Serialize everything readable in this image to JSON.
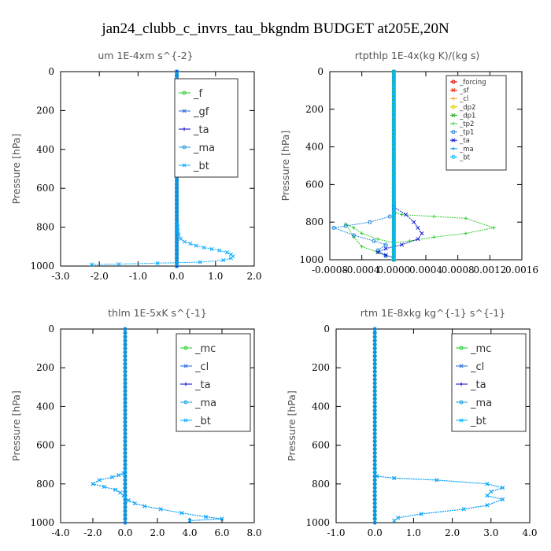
{
  "figure_title": "jan24_clubb_c_invrs_tau_bkgndm  BUDGET at205E,20N",
  "chart_data": [
    {
      "type": "line",
      "title": "um  1E-4xm s^{-2}",
      "ylabel": "Pressure [hPa]",
      "xlim": [
        -3.0,
        2.0
      ],
      "ylim": [
        1000,
        0
      ],
      "x_ticks": [
        "-3.0",
        "-2.0",
        "-1.0",
        "0.0",
        "1.0",
        "2.0"
      ],
      "x_tick_values": [
        -3,
        -2,
        -1,
        0,
        1,
        2
      ],
      "y_ticks": [
        "0",
        "200",
        "400",
        "600",
        "800",
        "1000"
      ],
      "y_tick_values": [
        0,
        200,
        400,
        600,
        800,
        1000
      ],
      "legend_position": "top-right",
      "legend_style": "large",
      "series": [
        {
          "name": "_f",
          "color": "#22cc22",
          "x": [
            0,
            0
          ],
          "y": [
            0,
            1000
          ]
        },
        {
          "name": "_gf",
          "color": "#2266dd",
          "x": [
            0,
            0
          ],
          "y": [
            0,
            1000
          ]
        },
        {
          "name": "_ta",
          "color": "#0000cc",
          "x": [
            0,
            0
          ],
          "y": [
            0,
            1000
          ]
        },
        {
          "name": "_ma",
          "color": "#1199dd",
          "x": [
            0,
            0
          ],
          "y": [
            0,
            1000
          ]
        },
        {
          "name": "_bt",
          "color": "#00aaff",
          "x": [
            0.01,
            0.02,
            0.03,
            0.05,
            0.1,
            0.2,
            0.35,
            0.5,
            0.7,
            0.9,
            1.1,
            1.3,
            1.4,
            1.45,
            1.4,
            1.2,
            0.6,
            -0.5,
            -1.5,
            -2.2
          ],
          "y": [
            780,
            800,
            820,
            840,
            860,
            875,
            885,
            895,
            905,
            912,
            920,
            930,
            940,
            950,
            960,
            970,
            980,
            985,
            990,
            992
          ]
        }
      ]
    },
    {
      "type": "line",
      "title": "rtpthlp  1E-4x(kg K)/(kg s)",
      "ylabel": "Pressure [hPa]",
      "xlim": [
        -0.0008,
        0.0016
      ],
      "ylim": [
        1000,
        0
      ],
      "x_ticks": [
        "-0.0008",
        "-0.0004",
        "0.0000",
        "0.0004",
        "0.0008",
        "0.0012",
        "0.0016"
      ],
      "x_tick_values": [
        -0.0008,
        -0.0004,
        0.0,
        0.0004,
        0.0008,
        0.0012,
        0.0016
      ],
      "y_ticks": [
        "0",
        "200",
        "400",
        "600",
        "800",
        "1000"
      ],
      "y_tick_values": [
        0,
        200,
        400,
        600,
        800,
        1000
      ],
      "legend_position": "top-right",
      "legend_style": "small",
      "series": [
        {
          "name": "_forcing",
          "color": "#dd0000",
          "x": [
            0,
            0
          ],
          "y": [
            0,
            1000
          ]
        },
        {
          "name": "_sf",
          "color": "#ee2200",
          "x": [
            0,
            0
          ],
          "y": [
            0,
            1000
          ]
        },
        {
          "name": "_cl",
          "color": "#ff9900",
          "x": [
            0,
            0
          ],
          "y": [
            0,
            1000
          ]
        },
        {
          "name": "_dp2",
          "color": "#ddcc00",
          "x": [
            0,
            0
          ],
          "y": [
            0,
            1000
          ]
        },
        {
          "name": "_dp1",
          "color": "#22aa22",
          "x": [
            0,
            0
          ],
          "y": [
            0,
            1000
          ]
        },
        {
          "name": "_tp2",
          "color": "#33cc33",
          "x": [
            2e-05,
            0.0001,
            0.0005,
            0.0009,
            0.00125,
            0.0009,
            0.0005,
            0.0002,
            0.0,
            -0.0002,
            -0.0004,
            -0.0005,
            -0.0006,
            -0.0005,
            -0.0004,
            -0.0002,
            -0.0001
          ],
          "y": [
            750,
            760,
            770,
            780,
            830,
            860,
            880,
            900,
            910,
            890,
            860,
            830,
            810,
            880,
            930,
            960,
            980
          ]
        },
        {
          "name": "_tp1",
          "color": "#2288dd",
          "x": [
            -5e-05,
            -0.0003,
            -0.0006,
            -0.00075,
            -0.0005,
            -0.00025,
            -0.0001,
            -0.0002,
            -0.0001
          ],
          "y": [
            770,
            800,
            820,
            830,
            870,
            900,
            920,
            950,
            980
          ]
        },
        {
          "name": "_ta",
          "color": "#1122cc",
          "x": [
            0.0,
            0.00015,
            0.00025,
            0.0003,
            0.00035,
            0.0003,
            0.0001,
            -0.0001,
            -0.0002,
            -0.0001,
            0.0
          ],
          "y": [
            720,
            760,
            800,
            830,
            860,
            890,
            920,
            940,
            960,
            975,
            990
          ]
        },
        {
          "name": "_ma",
          "color": "#1199dd",
          "x": [
            0,
            0
          ],
          "y": [
            0,
            1000
          ]
        },
        {
          "name": "_bt",
          "color": "#00bbff",
          "x": [
            0,
            0
          ],
          "y": [
            0,
            1000
          ]
        }
      ]
    },
    {
      "type": "line",
      "title": "thlm  1E-5xK s^{-1}",
      "ylabel": "Pressure [hPa]",
      "xlim": [
        -4.0,
        8.0
      ],
      "ylim": [
        1000,
        0
      ],
      "x_ticks": [
        "-4.0",
        "-2.0",
        "0.0",
        "2.0",
        "4.0",
        "6.0",
        "8.0"
      ],
      "x_tick_values": [
        -4,
        -2,
        0,
        2,
        4,
        6,
        8
      ],
      "y_ticks": [
        "0",
        "200",
        "400",
        "600",
        "800",
        "1000"
      ],
      "y_tick_values": [
        0,
        200,
        400,
        600,
        800,
        1000
      ],
      "legend_position": "top-right",
      "legend_style": "large",
      "series": [
        {
          "name": "_mc",
          "color": "#22cc22",
          "x": [
            0,
            0
          ],
          "y": [
            0,
            1000
          ]
        },
        {
          "name": "_cl",
          "color": "#2266dd",
          "x": [
            0.0,
            -0.1,
            -0.4,
            -0.8,
            -1.6,
            -2.0,
            -1.3,
            -0.6,
            -0.3,
            -0.1,
            0.0,
            0.2,
            0.6,
            1.2,
            2.2,
            3.5,
            5.0,
            6.0,
            4.0
          ],
          "y": [
            730,
            745,
            755,
            765,
            780,
            800,
            815,
            830,
            845,
            860,
            870,
            885,
            900,
            915,
            930,
            950,
            970,
            980,
            990
          ]
        },
        {
          "name": "_ta",
          "color": "#0000cc",
          "x": [
            0,
            0
          ],
          "y": [
            0,
            1000
          ]
        },
        {
          "name": "_ma",
          "color": "#1199dd",
          "x": [
            0,
            0
          ],
          "y": [
            0,
            1000
          ]
        },
        {
          "name": "_bt",
          "color": "#00aaff",
          "x": [
            0.0,
            -0.1,
            -0.4,
            -0.8,
            -1.6,
            -2.0,
            -1.3,
            -0.6,
            -0.3,
            -0.1,
            0.0,
            0.2,
            0.6,
            1.2,
            2.2,
            3.5,
            5.0,
            6.0,
            4.0
          ],
          "y": [
            730,
            745,
            755,
            765,
            780,
            800,
            815,
            830,
            845,
            860,
            870,
            885,
            900,
            915,
            930,
            950,
            970,
            980,
            990
          ]
        }
      ]
    },
    {
      "type": "line",
      "title": "rtm  1E-8xkg kg^{-1} s^{-1}",
      "ylabel": "Pressure [hPa]",
      "xlim": [
        -1.0,
        4.0
      ],
      "ylim": [
        1000,
        0
      ],
      "x_ticks": [
        "-1.0",
        "0.0",
        "1.0",
        "2.0",
        "3.0",
        "4.0"
      ],
      "x_tick_values": [
        -1,
        0,
        1,
        2,
        3,
        4
      ],
      "y_ticks": [
        "0",
        "200",
        "400",
        "600",
        "800",
        "1000"
      ],
      "y_tick_values": [
        0,
        200,
        400,
        600,
        800,
        1000
      ],
      "legend_position": "top-right",
      "legend_style": "large",
      "series": [
        {
          "name": "_mc",
          "color": "#22cc22",
          "x": [
            0,
            0
          ],
          "y": [
            0,
            1000
          ]
        },
        {
          "name": "_cl",
          "color": "#2266dd",
          "x": [
            0.0,
            0.05,
            0.5,
            1.6,
            2.9,
            3.3,
            3.0,
            2.9,
            3.3,
            2.9,
            2.3,
            1.2,
            0.6,
            0.5
          ],
          "y": [
            730,
            760,
            770,
            780,
            800,
            820,
            840,
            860,
            880,
            910,
            930,
            955,
            975,
            990
          ]
        },
        {
          "name": "_ta",
          "color": "#0000cc",
          "x": [
            0,
            0
          ],
          "y": [
            0,
            1000
          ]
        },
        {
          "name": "_ma",
          "color": "#1199dd",
          "x": [
            0,
            0
          ],
          "y": [
            0,
            1000
          ]
        },
        {
          "name": "_bt",
          "color": "#00aaff",
          "x": [
            0.0,
            0.05,
            0.5,
            1.6,
            2.9,
            3.3,
            3.0,
            2.9,
            3.3,
            2.9,
            2.3,
            1.2,
            0.6,
            0.5
          ],
          "y": [
            730,
            760,
            770,
            780,
            800,
            820,
            840,
            860,
            880,
            910,
            930,
            955,
            975,
            990
          ]
        }
      ]
    }
  ]
}
